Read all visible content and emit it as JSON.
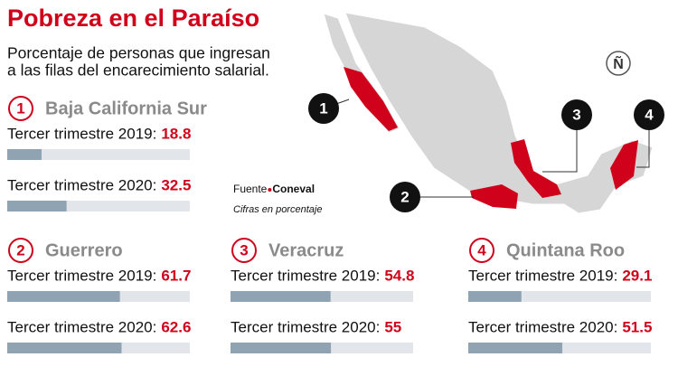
{
  "title": "Pobreza en el Paraíso",
  "subtitle": [
    "Porcentaje de personas que ingresan",
    "a las filas del encarecimiento salarial."
  ],
  "source": {
    "label": "Fuente",
    "name": "Coneval"
  },
  "note": "Cifras en porcentaje",
  "logo": "Ñ",
  "chart_data": [
    {
      "type": "bar",
      "number": "1",
      "title": "Baja California Sur",
      "categories": [
        "Tercer trimestre 2019:",
        "Tercer trimestre 2020:"
      ],
      "values": [
        18.8,
        32.5
      ],
      "xlim": [
        0,
        100
      ],
      "color": "#8fa3b3",
      "track_color": "#e2e6ea",
      "value_color": "#d0021b"
    },
    {
      "type": "bar",
      "number": "2",
      "title": "Guerrero",
      "categories": [
        "Tercer trimestre 2019:",
        "Tercer trimestre 2020:"
      ],
      "values": [
        61.7,
        62.6
      ],
      "xlim": [
        0,
        100
      ],
      "color": "#8fa3b3",
      "track_color": "#e2e6ea",
      "value_color": "#d0021b"
    },
    {
      "type": "bar",
      "number": "3",
      "title": "Veracruz",
      "categories": [
        "Tercer trimestre 2019:",
        "Tercer trimestre 2020:"
      ],
      "values": [
        54.8,
        55
      ],
      "xlim": [
        0,
        100
      ],
      "color": "#8fa3b3",
      "track_color": "#e2e6ea",
      "value_color": "#d0021b"
    },
    {
      "type": "bar",
      "number": "4",
      "title": "Quintana Roo",
      "categories": [
        "Tercer trimestre 2019:",
        "Tercer trimestre 2020:"
      ],
      "values": [
        29.1,
        51.5
      ],
      "xlim": [
        0,
        100
      ],
      "color": "#8fa3b3",
      "track_color": "#e2e6ea",
      "value_color": "#d0021b"
    }
  ]
}
